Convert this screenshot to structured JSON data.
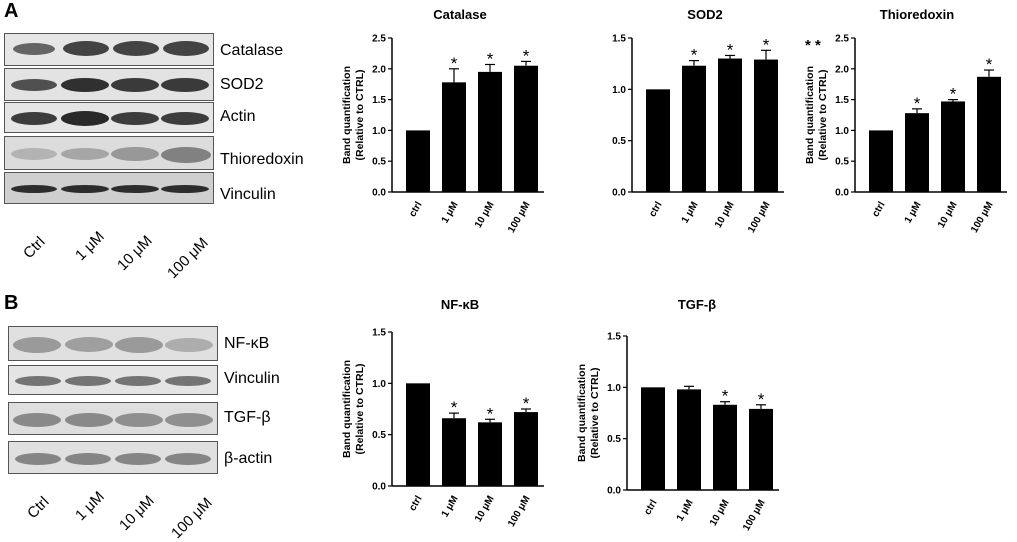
{
  "panels": {
    "a": {
      "letter": "A",
      "blot_labels": [
        "Catalase",
        "SOD2",
        "Actin",
        "Thioredoxin",
        "Vinculin"
      ],
      "lane_labels": [
        "Ctrl",
        "1 μM",
        "10 μM",
        "100 μM"
      ]
    },
    "b": {
      "letter": "B",
      "blot_labels": [
        "NF-κB",
        "Vinculin",
        "TGF-β",
        "β-actin"
      ],
      "lane_labels": [
        "Ctrl",
        "1 μM",
        "10 μM",
        "100 μM"
      ]
    }
  },
  "chart_data": [
    {
      "type": "bar",
      "title": "Catalase",
      "categories": [
        "ctrl",
        "1 μM",
        "10 μM",
        "100 μM"
      ],
      "values": [
        1.0,
        1.78,
        1.95,
        2.05
      ],
      "errors": [
        0,
        0.22,
        0.12,
        0.07
      ],
      "significance": [
        "",
        "*",
        "*",
        "*"
      ],
      "ylabel": "Band quantification\n(Relative to CTRL)",
      "ylim": [
        0,
        2.5
      ],
      "yticks": [
        "0.0",
        "0.5",
        "1.0",
        "1.5",
        "2.0",
        "2.5"
      ]
    },
    {
      "type": "bar",
      "title": "SOD2",
      "categories": [
        "ctrl",
        "1 μM",
        "10 μM",
        "100 μM"
      ],
      "values": [
        1.0,
        1.23,
        1.3,
        1.29
      ],
      "errors": [
        0,
        0.05,
        0.03,
        0.09
      ],
      "significance": [
        "",
        "*",
        "*",
        "*"
      ],
      "ylabel": "",
      "ylim": [
        0,
        1.5
      ],
      "yticks": [
        "0.0",
        "0.5",
        "1.0",
        "1.5"
      ]
    },
    {
      "type": "bar",
      "title": "Thioredoxin",
      "categories": [
        "ctrl",
        "1 μM",
        "10 μM",
        "100 μM"
      ],
      "values": [
        1.0,
        1.28,
        1.47,
        1.87
      ],
      "errors": [
        0,
        0.07,
        0.03,
        0.11
      ],
      "significance": [
        "",
        "*",
        "*",
        "*"
      ],
      "extra_marks": "* *",
      "ylabel": "Band quantification\n(Relative to CTRL)",
      "ylim": [
        0,
        2.5
      ],
      "yticks": [
        "0.0",
        "0.5",
        "1.0",
        "1.5",
        "2.0",
        "2.5"
      ]
    },
    {
      "type": "bar",
      "title": "NF-κB",
      "categories": [
        "ctrl",
        "1 μM",
        "10 μM",
        "100 μM"
      ],
      "values": [
        1.0,
        0.66,
        0.62,
        0.72
      ],
      "errors": [
        0,
        0.05,
        0.03,
        0.03
      ],
      "significance": [
        "",
        "*",
        "*",
        "*"
      ],
      "ylabel": "Band quantification\n(Relative to CTRL)",
      "ylim": [
        0,
        1.5
      ],
      "yticks": [
        "0.0",
        "0.5",
        "1.0",
        "1.5"
      ]
    },
    {
      "type": "bar",
      "title": "TGF-β",
      "categories": [
        "ctrl",
        "1 μM",
        "10 μM",
        "100 μM"
      ],
      "values": [
        1.0,
        0.98,
        0.83,
        0.79
      ],
      "errors": [
        0,
        0.03,
        0.03,
        0.04
      ],
      "significance": [
        "",
        "",
        "*",
        "*"
      ],
      "ylabel": "Band quantification\n(Relative to CTRL)",
      "ylim": [
        0,
        1.5
      ],
      "yticks": [
        "0.0",
        "0.5",
        "1.0",
        "1.5"
      ]
    }
  ]
}
